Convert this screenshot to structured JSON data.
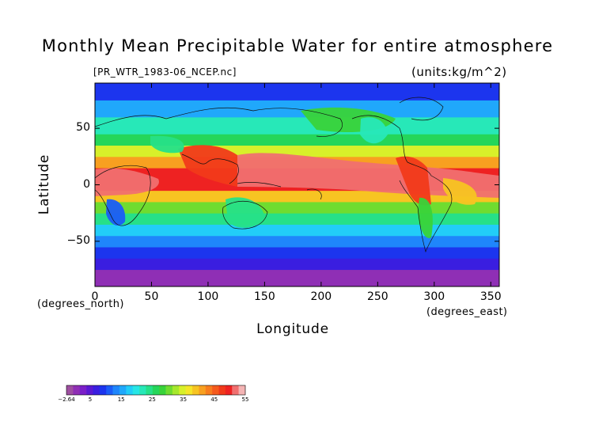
{
  "title": "Monthly Mean Precipitable Water for entire atmosphere",
  "subtitle_file": "[PR_WTR_1983-06_NCEP.nc]",
  "units": "(units:kg/m^2)",
  "axes": {
    "xlabel": "Longitude",
    "ylabel": "Latitude",
    "x_units": "(degrees_east)",
    "y_units": "(degrees_north)",
    "x_ticks": [
      "0",
      "50",
      "100",
      "150",
      "200",
      "250",
      "300",
      "350"
    ],
    "y_ticks": [
      "50",
      "0",
      "−50"
    ],
    "x_range": [
      0,
      357.5
    ],
    "y_range": [
      -90,
      90
    ]
  },
  "colorbar": {
    "labels": [
      "−2.64",
      "5",
      "15",
      "25",
      "35",
      "45",
      "55"
    ],
    "colors": [
      "#9e4fa0",
      "#8f2fb5",
      "#7b1fc8",
      "#5a18d2",
      "#3a1ee0",
      "#1c35ee",
      "#1b5cf7",
      "#1f86fb",
      "#20a8fb",
      "#22cdf8",
      "#27e6e6",
      "#27e8b8",
      "#26e088",
      "#25d65a",
      "#39d33a",
      "#6fdc30",
      "#a6e82c",
      "#d8f02a",
      "#f5e628",
      "#f7c422",
      "#f8a020",
      "#f77d1e",
      "#f55a1c",
      "#f13a1a",
      "#ee2222",
      "#f07070",
      "#f4b4b4"
    ]
  },
  "chart_data": {
    "type": "heatmap",
    "title": "Monthly Mean Precipitable Water for entire atmosphere",
    "variable": "PR_WTR",
    "file": "PR_WTR_1983-06_NCEP.nc",
    "units": "kg/m^2",
    "xlabel": "Longitude",
    "ylabel": "Latitude",
    "xlim": [
      0,
      357.5
    ],
    "ylim": [
      -90,
      90
    ],
    "color_range": [
      -2.64,
      55
    ],
    "lat_bands": [
      {
        "lat": [
          -90,
          -75
        ],
        "value": 1
      },
      {
        "lat": [
          -75,
          -65
        ],
        "value": 6
      },
      {
        "lat": [
          -65,
          -55
        ],
        "value": 9
      },
      {
        "lat": [
          -55,
          -45
        ],
        "value": 13
      },
      {
        "lat": [
          -45,
          -35
        ],
        "value": 18
      },
      {
        "lat": [
          -35,
          -25
        ],
        "value": 24
      },
      {
        "lat": [
          -25,
          -15
        ],
        "value": 31
      },
      {
        "lat": [
          -15,
          -5
        ],
        "value": 40
      },
      {
        "lat": [
          -5,
          15
        ],
        "value": 50
      },
      {
        "lat": [
          15,
          25
        ],
        "value": 42
      },
      {
        "lat": [
          25,
          35
        ],
        "value": 34
      },
      {
        "lat": [
          35,
          45
        ],
        "value": 27
      },
      {
        "lat": [
          45,
          60
        ],
        "value": 21
      },
      {
        "lat": [
          60,
          75
        ],
        "value": 15
      },
      {
        "lat": [
          75,
          90
        ],
        "value": 9
      }
    ]
  }
}
